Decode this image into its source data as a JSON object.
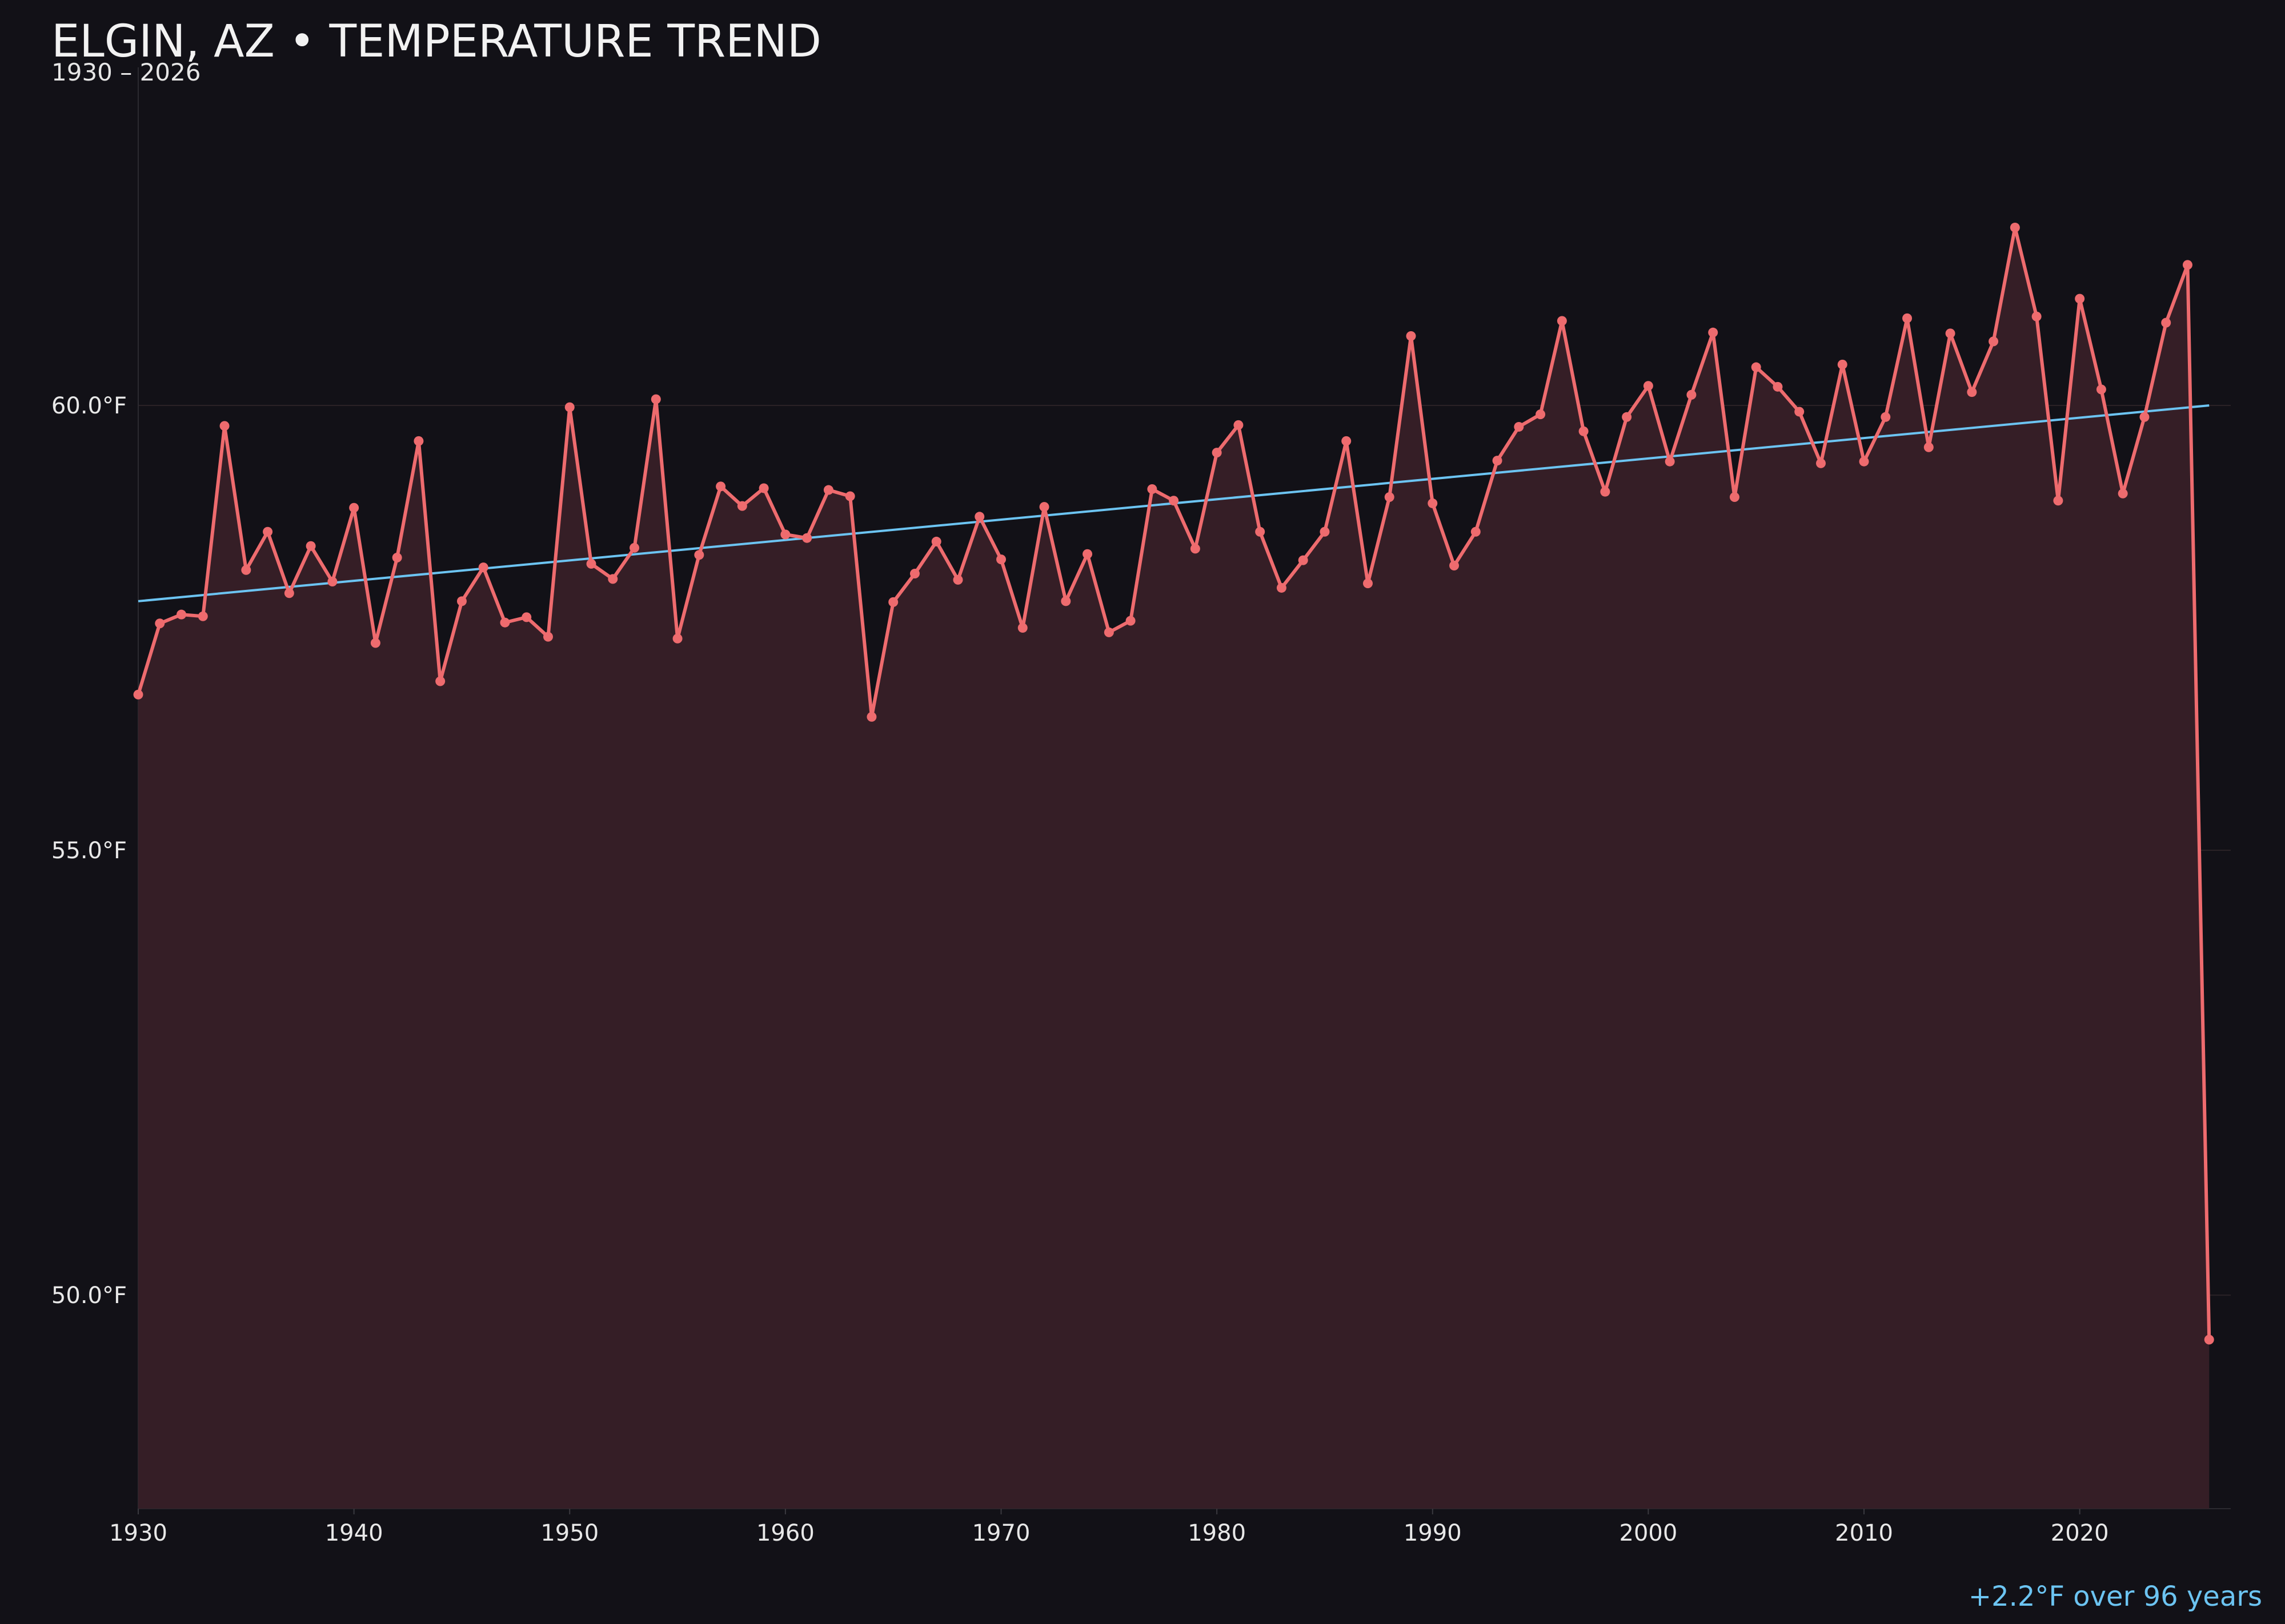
{
  "title": "ELGIN, AZ • TEMPERATURE TREND",
  "subtitle": "1930 – 2026",
  "annotation": "+2.2°F over 96 years",
  "colors": {
    "background": "#121117",
    "series_line": "#ee6b6e",
    "series_fill": "#351e26",
    "trend_line": "#6cc4f2",
    "grid": "#2a2226",
    "text": "#e8e8e8"
  },
  "chart_data": {
    "type": "line",
    "title": "ELGIN, AZ • TEMPERATURE TREND",
    "subtitle": "1930 – 2026",
    "xlabel": "",
    "ylabel": "",
    "xlim": [
      1930,
      2027
    ],
    "ylim": [
      47.6,
      63.8
    ],
    "x_ticks": [
      1930,
      1940,
      1950,
      1960,
      1970,
      1980,
      1990,
      2000,
      2010,
      2020
    ],
    "x_tick_labels": [
      "1930",
      "1940",
      "1950",
      "1960",
      "1970",
      "1980",
      "1990",
      "2000",
      "2010",
      "2020"
    ],
    "y_ticks": [
      50,
      55,
      60
    ],
    "y_tick_labels": [
      "50.0°F",
      "55.0°F",
      "60.0°F"
    ],
    "grid": "horizontal",
    "area_fill": true,
    "series": [
      {
        "x": [
          1930,
          1931,
          1932,
          1933,
          1934,
          1935,
          1936,
          1937,
          1938,
          1939,
          1940,
          1941,
          1942,
          1943,
          1944,
          1945,
          1946,
          1947,
          1948,
          1949,
          1950,
          1951,
          1952,
          1953,
          1954,
          1955,
          1956,
          1957,
          1958,
          1959,
          1960,
          1961,
          1962,
          1963,
          1964,
          1965,
          1966,
          1967,
          1968,
          1969,
          1970,
          1971,
          1972,
          1973,
          1974,
          1975,
          1976,
          1977,
          1978,
          1979,
          1980,
          1981,
          1982,
          1983,
          1984,
          1985,
          1986,
          1987,
          1988,
          1989,
          1990,
          1991,
          1992,
          1993,
          1994,
          1995,
          1996,
          1997,
          1998,
          1999,
          2000,
          2001,
          2002,
          2003,
          2004,
          2005,
          2006,
          2007,
          2008,
          2009,
          2010,
          2011,
          2012,
          2013,
          2014,
          2015,
          2016,
          2017,
          2018,
          2019,
          2020,
          2021,
          2022,
          2023,
          2024,
          2025,
          2026
        ],
        "values": [
          56.75,
          57.55,
          57.65,
          57.63,
          59.77,
          58.15,
          58.58,
          57.89,
          58.42,
          58.02,
          58.85,
          57.33,
          58.29,
          59.6,
          56.9,
          57.8,
          58.18,
          57.56,
          57.62,
          57.4,
          59.98,
          58.22,
          58.05,
          58.4,
          60.07,
          57.38,
          58.32,
          59.09,
          58.87,
          59.07,
          58.55,
          58.51,
          59.05,
          58.98,
          56.5,
          57.79,
          58.11,
          58.47,
          58.04,
          58.75,
          58.27,
          57.5,
          58.86,
          57.8,
          58.33,
          57.45,
          57.58,
          59.06,
          58.93,
          58.39,
          59.47,
          59.78,
          58.58,
          57.95,
          58.26,
          58.58,
          59.6,
          58.0,
          58.97,
          60.78,
          58.9,
          58.2,
          58.58,
          59.38,
          59.76,
          59.9,
          60.95,
          59.71,
          59.03,
          59.87,
          60.22,
          59.37,
          60.12,
          60.82,
          58.97,
          60.43,
          60.21,
          59.93,
          59.35,
          60.46,
          59.37,
          59.87,
          60.98,
          59.53,
          60.81,
          60.15,
          60.72,
          62.0,
          61.0,
          58.93,
          61.2,
          60.18,
          59.01,
          59.87,
          60.93,
          61.58,
          49.5
        ]
      }
    ],
    "trend": {
      "start": [
        1930,
        57.8
      ],
      "end": [
        2026,
        60.0
      ]
    }
  }
}
